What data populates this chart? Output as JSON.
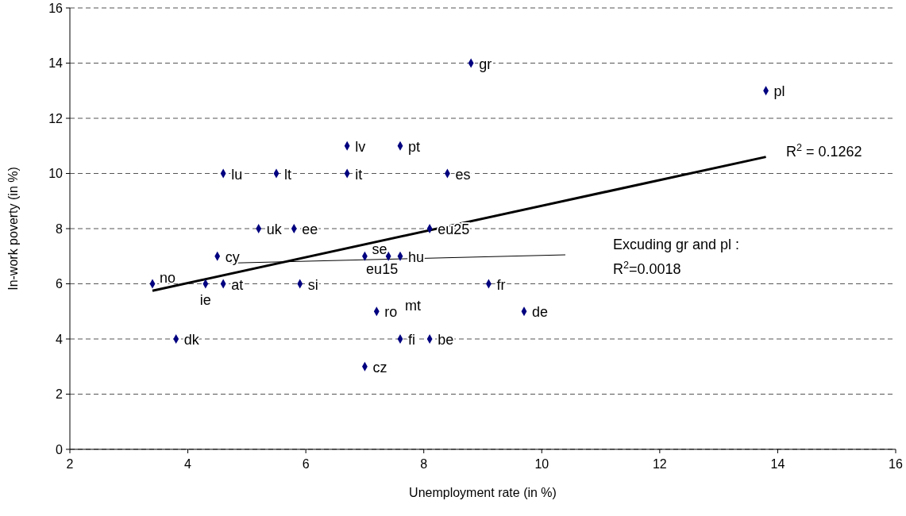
{
  "chart_data": {
    "type": "scatter",
    "xlabel": "Unemployment rate (in %)",
    "ylabel": "In-work poverty (in %)",
    "xlim": [
      2,
      16
    ],
    "xticks": [
      2,
      4,
      6,
      8,
      10,
      12,
      14,
      16
    ],
    "ylim": [
      0,
      16
    ],
    "yticks": [
      0,
      2,
      4,
      6,
      8,
      10,
      12,
      14,
      16
    ],
    "grid": "y",
    "series": [
      {
        "type": "scatter",
        "color": "#000080",
        "marker": "diamond",
        "x": [
          3.4,
          3.8,
          4.3,
          4.6,
          4.6,
          4.5,
          5.2,
          5.5,
          5.8,
          5.9,
          6.7,
          6.7,
          7.0,
          7.4,
          7.6,
          7.6,
          7.2,
          7.0,
          7.6,
          8.1,
          8.1,
          8.4,
          8.8,
          9.1,
          9.7,
          13.8
        ],
        "values": [
          6,
          4,
          6,
          6,
          10,
          7,
          8,
          10,
          8,
          6,
          11,
          10,
          7,
          7,
          7,
          11,
          5,
          3,
          4,
          4,
          8,
          10,
          14,
          6,
          5,
          13
        ],
        "value_labels": [
          "no",
          "dk",
          "ie",
          "at",
          "lu",
          "cy",
          "uk",
          "lt",
          "ee",
          "si",
          "lv",
          "it",
          "se",
          "eu15",
          "hu",
          "pt",
          "ro",
          "cz",
          "fi",
          "be",
          "eu25",
          "es",
          "gr",
          "fr",
          "de",
          "pl"
        ]
      },
      {
        "type": "line",
        "color": "#000000",
        "x": [
          3.4,
          13.8
        ],
        "values": [
          5.75,
          10.6
        ]
      },
      {
        "type": "line",
        "color": "#000000",
        "x": [
          4.7,
          10.4
        ],
        "values": [
          6.75,
          7.05
        ]
      }
    ],
    "annotations": [
      "R$^{2}$ = 0.1262",
      "Excuding gr and pl :",
      "R$^{2}$=0.0018",
      "mt"
    ]
  }
}
